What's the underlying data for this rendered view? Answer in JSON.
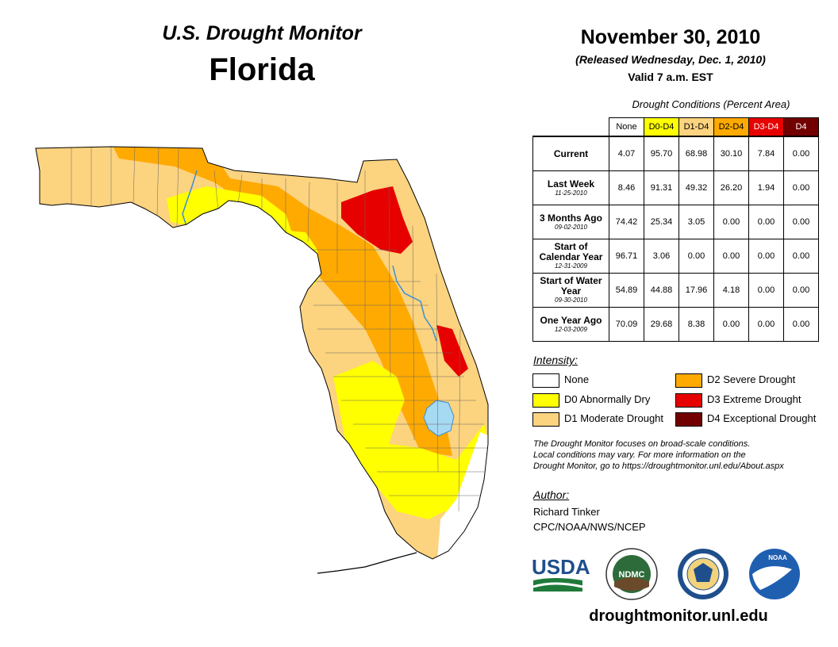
{
  "header": {
    "program": "U.S. Drought Monitor",
    "state": "Florida",
    "date": "November 30, 2010",
    "released": "(Released Wednesday, Dec. 1, 2010)",
    "valid": "Valid 7 a.m. EST"
  },
  "conditions_table": {
    "caption": "Drought Conditions (Percent Area)",
    "columns": [
      "None",
      "D0-D4",
      "D1-D4",
      "D2-D4",
      "D3-D4",
      "D4"
    ],
    "rows": [
      {
        "label": "Current",
        "date": "",
        "values": [
          "4.07",
          "95.70",
          "68.98",
          "30.10",
          "7.84",
          "0.00"
        ]
      },
      {
        "label": "Last Week",
        "date": "11-25-2010",
        "values": [
          "8.46",
          "91.31",
          "49.32",
          "26.20",
          "1.94",
          "0.00"
        ]
      },
      {
        "label": "3 Months Ago",
        "date": "09-02-2010",
        "values": [
          "74.42",
          "25.34",
          "3.05",
          "0.00",
          "0.00",
          "0.00"
        ]
      },
      {
        "label": "Start of Calendar Year",
        "date": "12-31-2009",
        "values": [
          "96.71",
          "3.06",
          "0.00",
          "0.00",
          "0.00",
          "0.00"
        ]
      },
      {
        "label": "Start of Water Year",
        "date": "09-30-2010",
        "values": [
          "54.89",
          "44.88",
          "17.96",
          "4.18",
          "0.00",
          "0.00"
        ]
      },
      {
        "label": "One Year Ago",
        "date": "12-03-2009",
        "values": [
          "70.09",
          "29.68",
          "8.38",
          "0.00",
          "0.00",
          "0.00"
        ]
      }
    ]
  },
  "legend": {
    "title": "Intensity:",
    "items": [
      {
        "label": "None",
        "color": "#ffffff"
      },
      {
        "label": "D0 Abnormally Dry",
        "color": "#ffff00"
      },
      {
        "label": "D1 Moderate Drought",
        "color": "#fcd37f"
      },
      {
        "label": "D2 Severe Drought",
        "color": "#ffaa00"
      },
      {
        "label": "D3 Extreme Drought",
        "color": "#e60000"
      },
      {
        "label": "D4 Exceptional Drought",
        "color": "#730000"
      }
    ]
  },
  "disclaimer": {
    "line1": "The Drought Monitor focuses on broad-scale conditions.",
    "line2": "Local conditions may vary. For more information on the",
    "line3": "Drought Monitor, go to https://droughtmonitor.unl.edu/About.aspx"
  },
  "author": {
    "title": "Author:",
    "name": "Richard Tinker",
    "org": "CPC/NOAA/NWS/NCEP"
  },
  "logos": {
    "usda": "USDA",
    "ndmc": "NDMC",
    "noaa": "NOAA"
  },
  "footer": {
    "url": "droughtmonitor.unl.edu"
  },
  "colors": {
    "none": "#ffffff",
    "d0": "#ffff00",
    "d1": "#fcd37f",
    "d2": "#ffaa00",
    "d3": "#e60000",
    "d4": "#730000",
    "water": "#a6d9f2",
    "river": "#3a8fd6"
  }
}
